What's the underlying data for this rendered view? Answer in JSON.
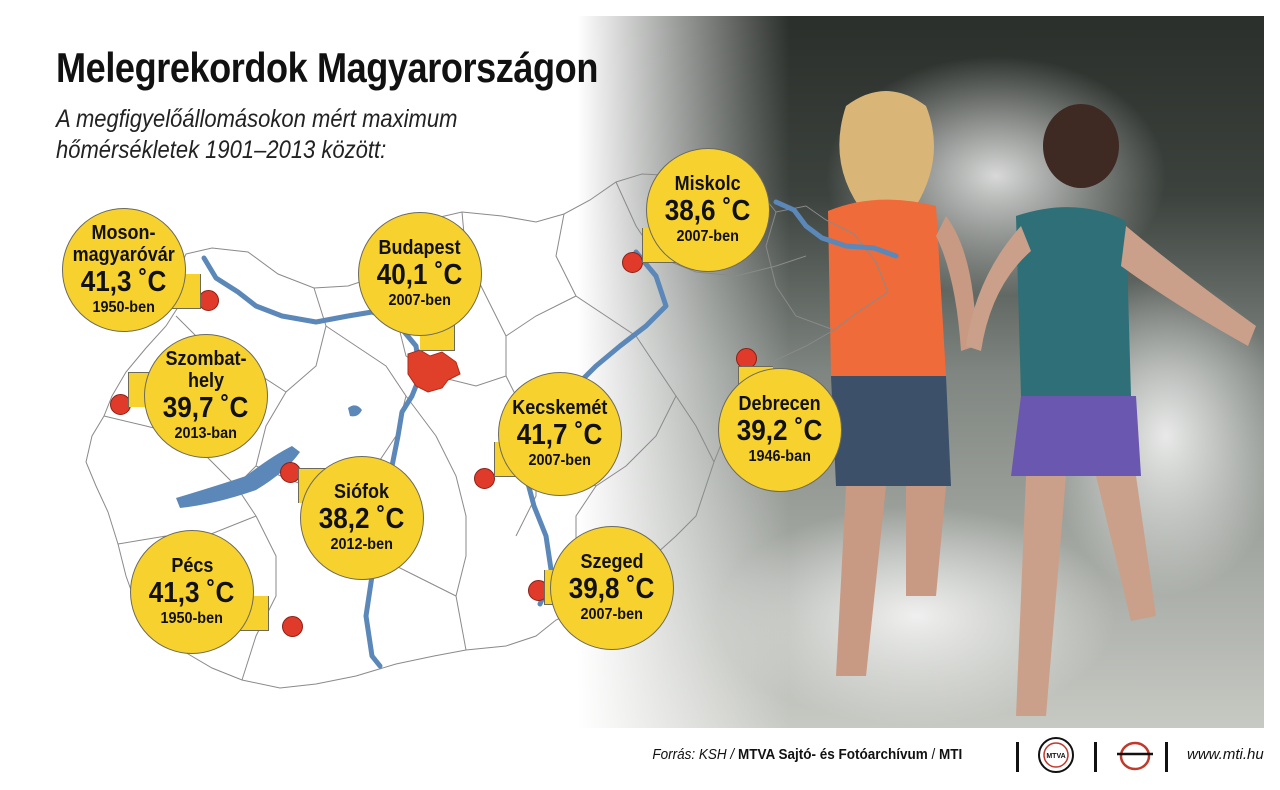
{
  "title": "Melegrekordok Magyarországon",
  "subtitle": {
    "line1": "A megfigyelőállomásokon mért maximum",
    "line2": "hőmérsékletek 1901–2013 között:"
  },
  "stations": [
    {
      "city_lines": [
        "Moson-",
        "magyaróvár"
      ],
      "temp": "41,3 ˚C",
      "year": "1950-ben"
    },
    {
      "city_lines": [
        "Szombat-",
        "hely"
      ],
      "temp": "39,7 ˚C",
      "year": "2013-ban"
    },
    {
      "city_lines": [
        "Pécs"
      ],
      "temp": "41,3 ˚C",
      "year": "1950-ben"
    },
    {
      "city_lines": [
        "Siófok"
      ],
      "temp": "38,2 ˚C",
      "year": "2012-ben"
    },
    {
      "city_lines": [
        "Budapest"
      ],
      "temp": "40,1 ˚C",
      "year": "2007-ben"
    },
    {
      "city_lines": [
        "Kecskemét"
      ],
      "temp": "41,7 ˚C",
      "year": "2007-ben"
    },
    {
      "city_lines": [
        "Szeged"
      ],
      "temp": "39,8 ˚C",
      "year": "2007-ben"
    },
    {
      "city_lines": [
        "Miskolc"
      ],
      "temp": "38,6 ˚C",
      "year": "2007-ben"
    },
    {
      "city_lines": [
        "Debrecen"
      ],
      "temp": "39,2 ˚C",
      "year": "1946-ban"
    }
  ],
  "colors": {
    "bubble": "#f7d22e",
    "station_dot": "#e03a2a",
    "river": "#5b88b8",
    "budapest": "#e0402a",
    "border": "#7a7a7a"
  },
  "footer": {
    "source_label": "Forrás: KSH /",
    "agency": "MTVA Sajtó- és Fotóarchívum",
    "slash": "/",
    "mti": "MTI",
    "logo1_text": "MTVA",
    "url": "www.mti.hu"
  }
}
